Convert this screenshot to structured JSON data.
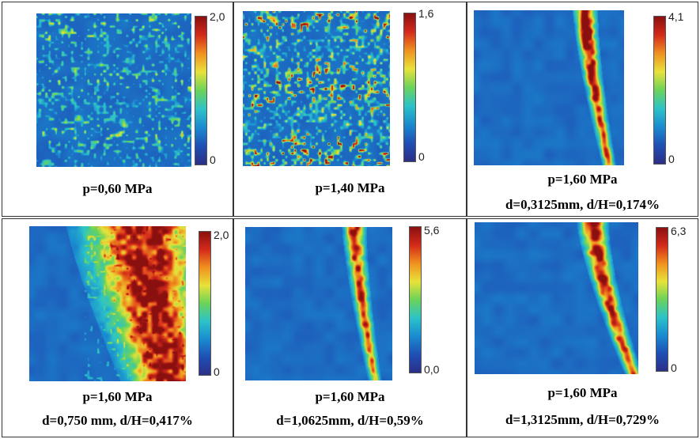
{
  "colors": {
    "field_background": "#2a5fb8",
    "colormap": [
      "#2b2f86",
      "#1f4fb5",
      "#1a8bd0",
      "#2cc3c8",
      "#6bd35a",
      "#e8e23a",
      "#f0911f",
      "#d42a1a",
      "#8a1010"
    ]
  },
  "panels": [
    {
      "id": "a",
      "colorbar": {
        "max_label": "2,0",
        "min_label": "0"
      },
      "captions": [
        "p=0,60 MPa"
      ],
      "field": {
        "pattern": "sparse_speckle",
        "intensity": 0.2
      }
    },
    {
      "id": "b",
      "colorbar": {
        "max_label": "1,6",
        "min_label": "0"
      },
      "captions": [
        "p=1,40 MPa"
      ],
      "field": {
        "pattern": "dense_speckle_bands",
        "intensity": 0.45
      }
    },
    {
      "id": "c",
      "colorbar": {
        "max_label": "4,1",
        "min_label": "0"
      },
      "captions": [
        "p=1,60 MPa",
        "d=0,3125mm, d/H=0,174%"
      ],
      "field": {
        "pattern": "shear_band",
        "band_top_x": 0.74,
        "band_bottom_x": 0.9,
        "band_width": 0.035,
        "peak": 1.0
      }
    },
    {
      "id": "d",
      "colorbar": {
        "max_label": "2,0",
        "min_label": "0"
      },
      "captions": [
        "p=1,60 MPa",
        "d=0,750 mm, d/H=0,417%"
      ],
      "field": {
        "pattern": "wide_shear_band",
        "band_top_x": 0.72,
        "band_bottom_x": 0.88,
        "band_width": 0.17,
        "peak": 1.0
      }
    },
    {
      "id": "e",
      "colorbar": {
        "max_label": "5,6",
        "min_label": "0,0"
      },
      "captions": [
        "p=1,60 MPa",
        "d=1,0625mm, d/H=0,59%"
      ],
      "field": {
        "pattern": "shear_band",
        "band_top_x": 0.74,
        "band_bottom_x": 0.88,
        "band_width": 0.035,
        "peak": 0.85
      }
    },
    {
      "id": "f",
      "colorbar": {
        "max_label": "6,3",
        "min_label": "0"
      },
      "captions": [
        "p=1,60 MPa",
        "d=1,3125mm, d/H=0,729%"
      ],
      "field": {
        "pattern": "shear_band",
        "band_top_x": 0.72,
        "band_bottom_x": 0.97,
        "band_width": 0.04,
        "peak": 0.95
      }
    }
  ]
}
